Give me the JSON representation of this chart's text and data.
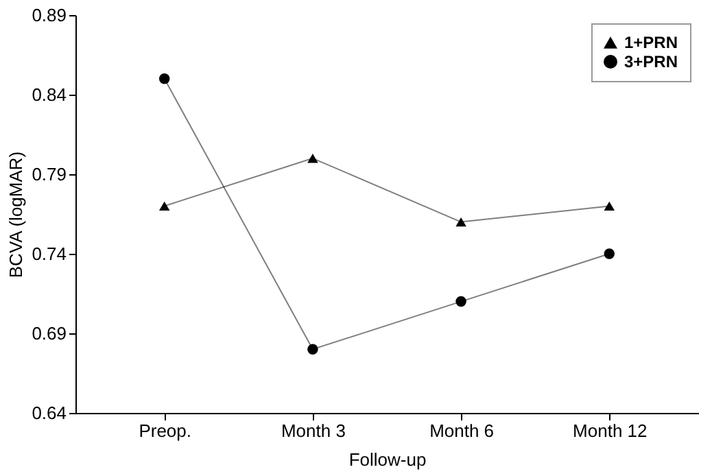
{
  "chart_data": {
    "type": "line",
    "xlabel": "Follow-up",
    "ylabel": "BCVA (logMAR)",
    "categories": [
      "Preop.",
      "Month 3",
      "Month 6",
      "Month 12"
    ],
    "series": [
      {
        "name": "1+PRN",
        "color": "#000000",
        "marker": "triangle",
        "values": [
          0.77,
          0.8,
          0.76,
          0.77
        ]
      },
      {
        "name": "3+PRN",
        "color": "#000000",
        "marker": "circle",
        "values": [
          0.85,
          0.68,
          0.71,
          0.74
        ]
      }
    ],
    "ylim": [
      0.64,
      0.89
    ],
    "yticks": [
      0.64,
      0.69,
      0.74,
      0.79,
      0.84,
      0.89
    ],
    "grid": false,
    "legend": "top right",
    "line_style": "solid"
  }
}
